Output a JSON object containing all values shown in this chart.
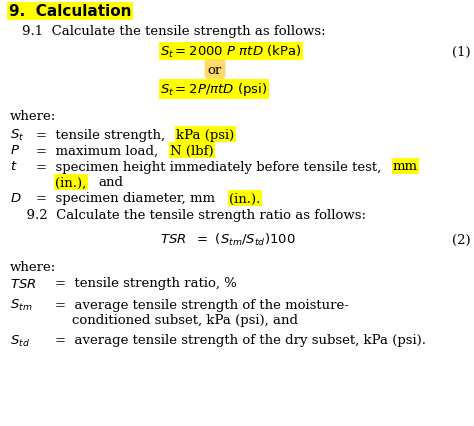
{
  "bg_color": "#ffffff",
  "yellow": "#ffff00",
  "orange": "#ffd966",
  "figsize": [
    4.74,
    4.27
  ],
  "dpi": 100
}
